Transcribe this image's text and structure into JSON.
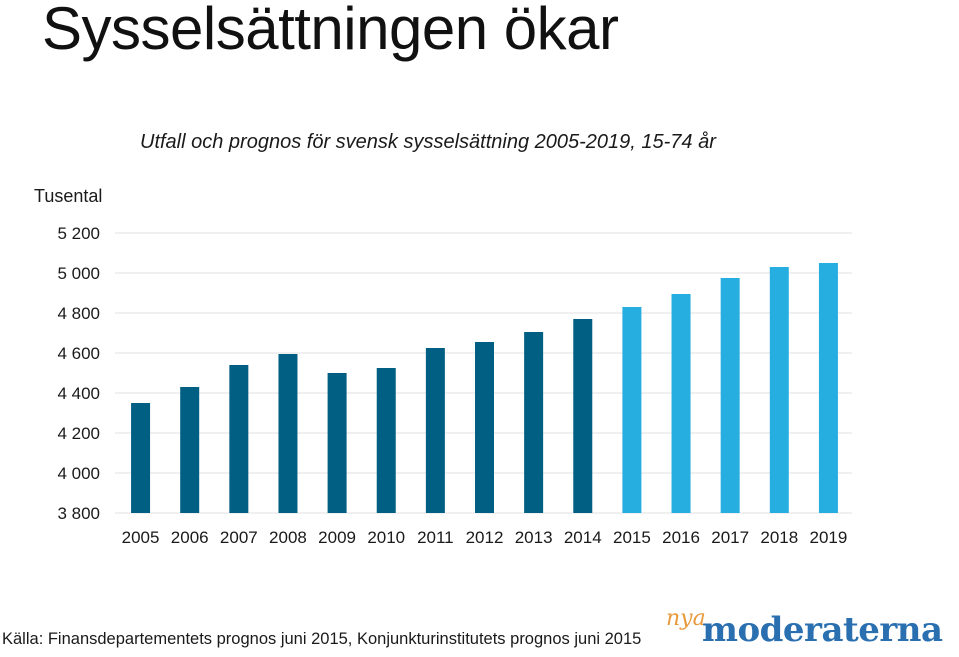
{
  "title": "Sysselsättningen ökar",
  "source": "Källa: Finansdepartementets prognos juni 2015, Konjunkturinstitutets prognos juni 2015",
  "logo": {
    "prefix": "nya",
    "name": "moderaterna"
  },
  "colors": {
    "outcome": "#005f82",
    "forecast": "#26aee0",
    "grid": "#e2e2e2"
  },
  "chart_data": {
    "type": "bar",
    "title": "Utfall och prognos för svensk sysselsättning 2005-2019, 15-74 år",
    "ylabel": "Tusental",
    "xlabel": "",
    "ylim": [
      3800,
      5200
    ],
    "yticks": [
      3800,
      4000,
      4200,
      4400,
      4600,
      4800,
      5000,
      5200
    ],
    "ytick_labels": [
      "3 800",
      "4 000",
      "4 200",
      "4 400",
      "4 600",
      "4 800",
      "5 000",
      "5 200"
    ],
    "grid": true,
    "categories": [
      "2005",
      "2006",
      "2007",
      "2008",
      "2009",
      "2010",
      "2011",
      "2012",
      "2013",
      "2014",
      "2015",
      "2016",
      "2017",
      "2018",
      "2019"
    ],
    "values": [
      4350,
      4430,
      4540,
      4595,
      4500,
      4525,
      4625,
      4655,
      4705,
      4770,
      4830,
      4895,
      4975,
      5030,
      5050
    ],
    "series_type": [
      "utfall",
      "utfall",
      "utfall",
      "utfall",
      "utfall",
      "utfall",
      "utfall",
      "utfall",
      "utfall",
      "utfall",
      "prognos",
      "prognos",
      "prognos",
      "prognos",
      "prognos"
    ]
  }
}
